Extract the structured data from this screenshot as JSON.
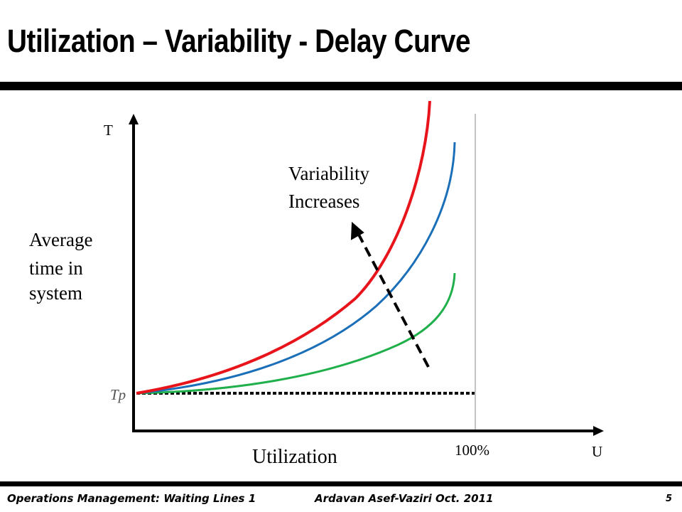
{
  "title": "Utilization – Variability - Delay Curve",
  "diagram": {
    "y_axis_label": "T",
    "x_axis_label": "U",
    "y_title_lines": [
      "Average",
      "time in",
      "system"
    ],
    "x_title": "Utilization",
    "tp_label": "Tp",
    "hundred_pct_label": "100%",
    "arrow_label_lines": [
      "Variability",
      "Increases"
    ],
    "curve_colors": {
      "high": "#e8141b",
      "medium": "#1a6fb8",
      "low": "#20b04b"
    }
  },
  "footer": {
    "left": "Operations Management: Waiting Lines 1",
    "center": "Ardavan Asef-Vaziri   Oct. 2011",
    "page": "5"
  }
}
